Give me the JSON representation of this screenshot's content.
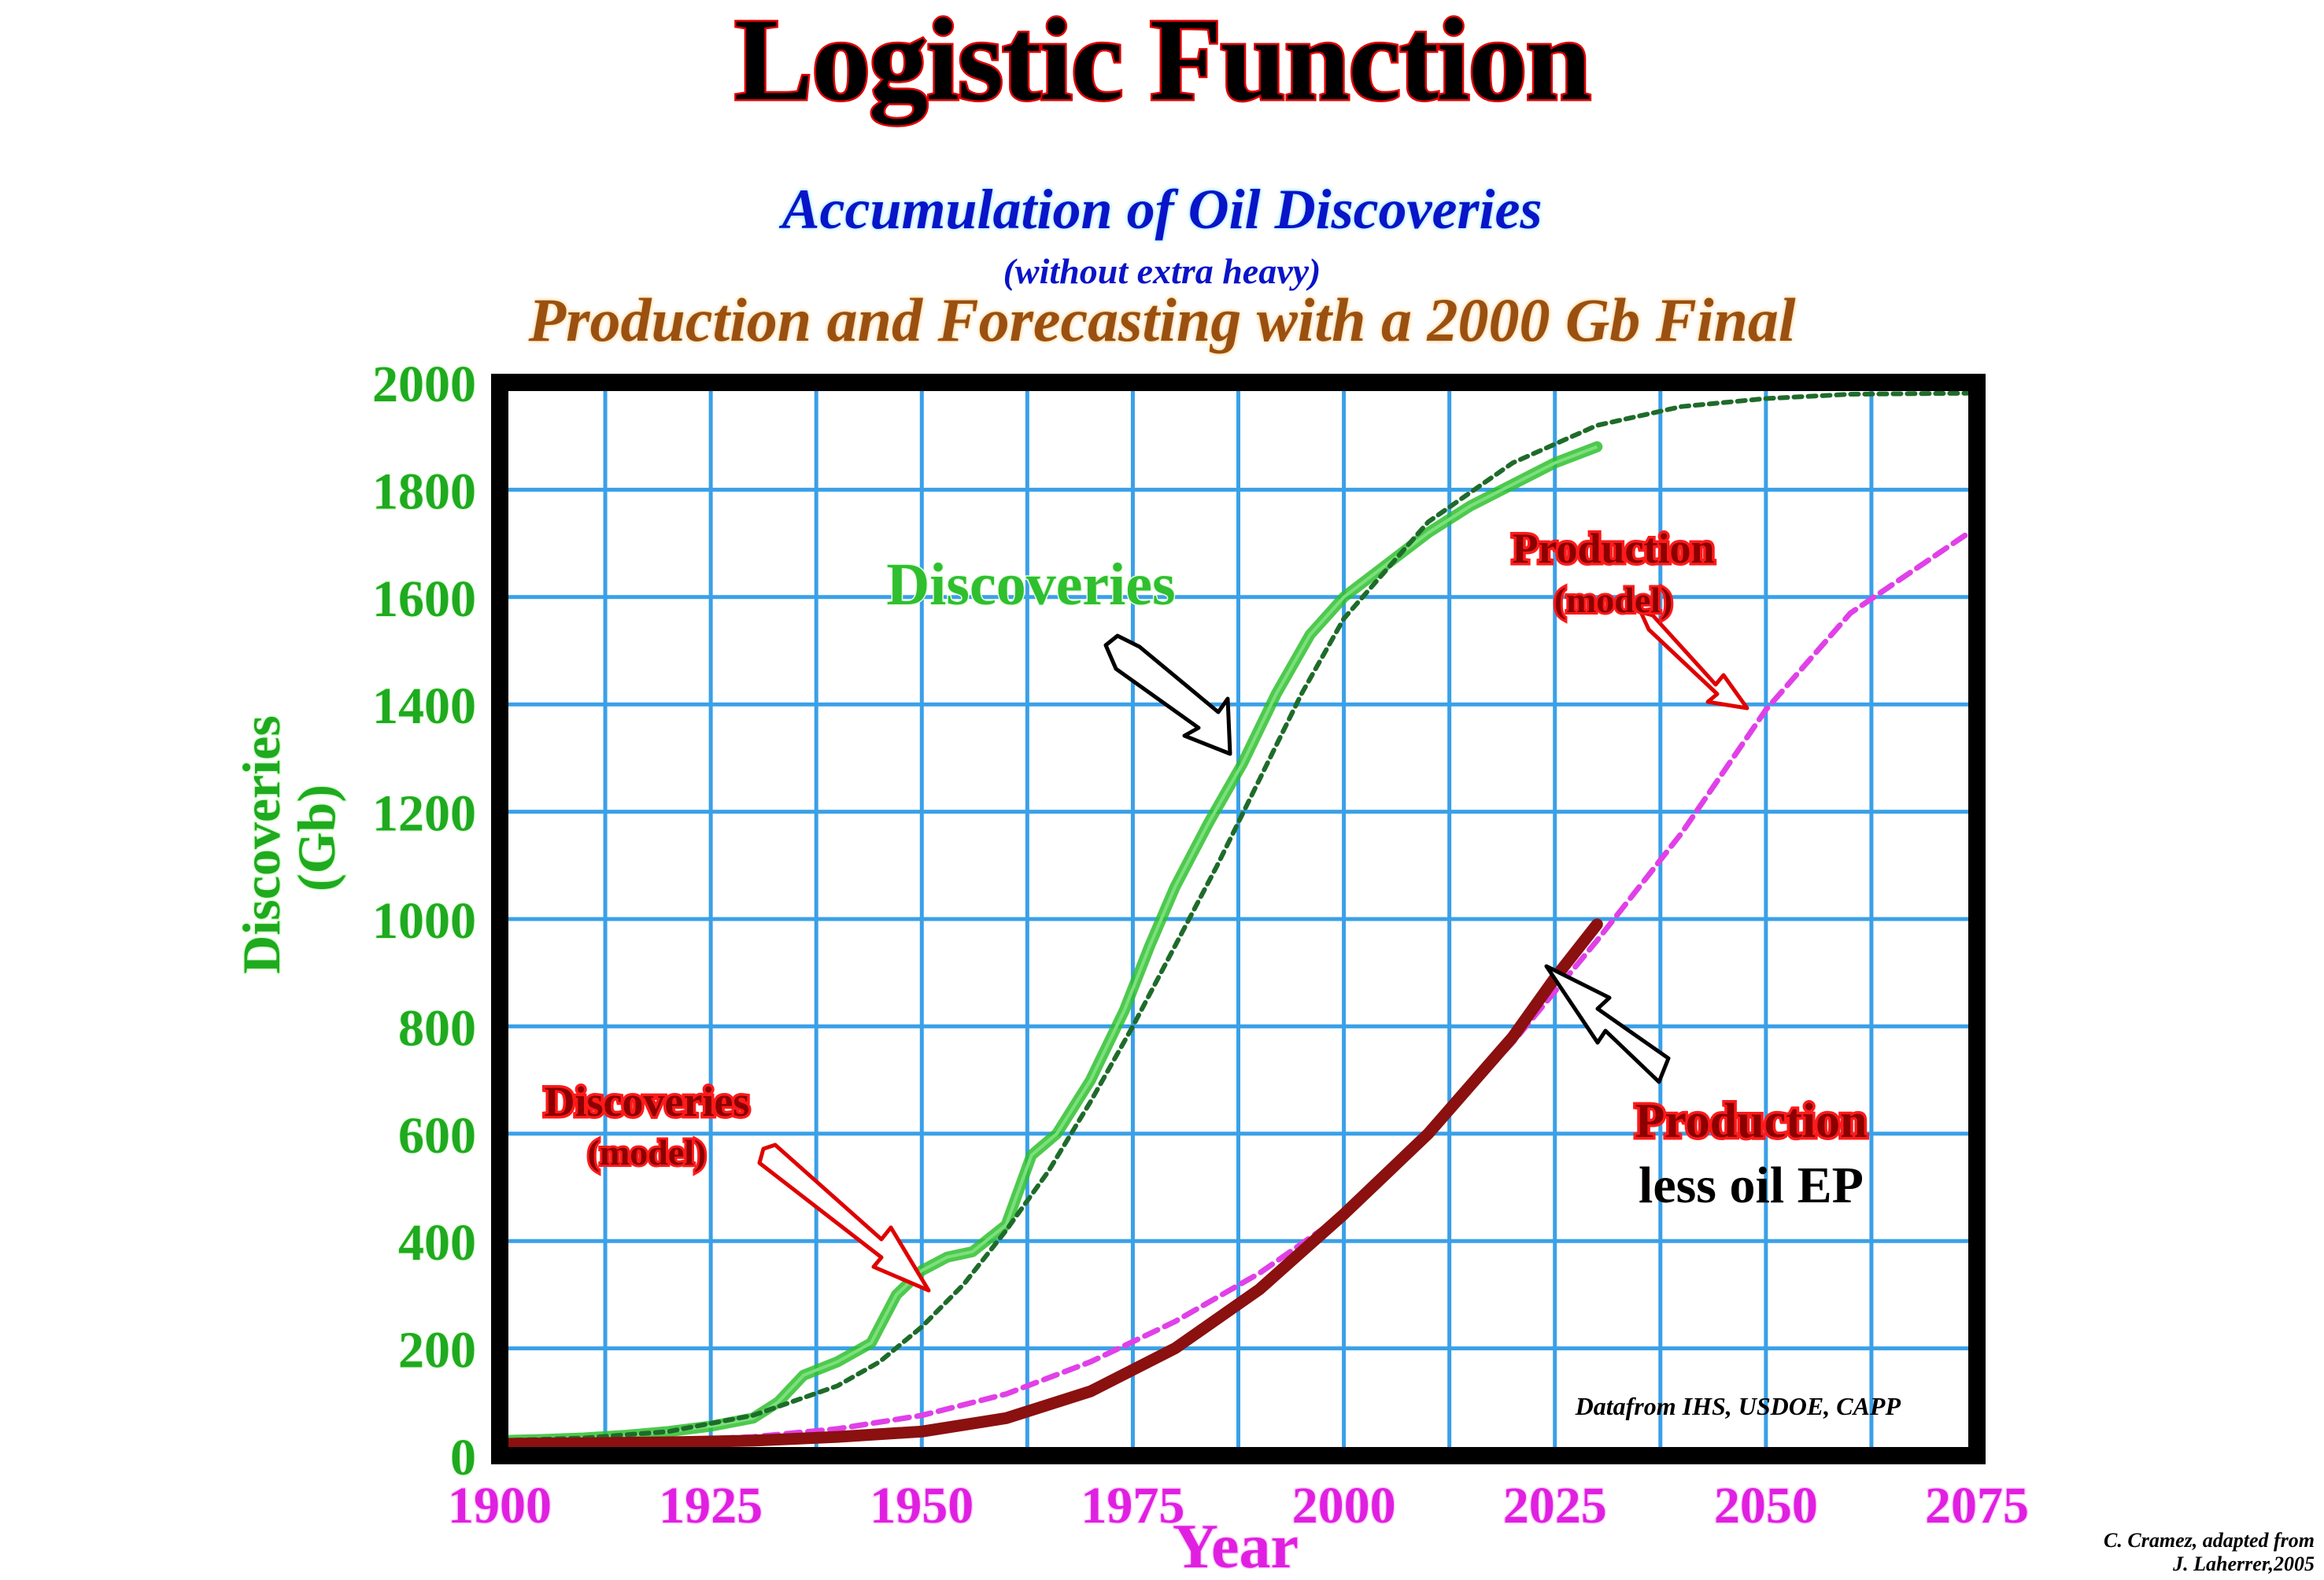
{
  "title": "Logistic Function",
  "subtitle_1": "Accumulation of Oil Discoveries",
  "subtitle_2": "(without extra heavy)",
  "subtitle_3": "Production and Forecasting with a 2000 Gb Final",
  "credit": "C. Cramez, adapted from\nJ. Laherrer,2005",
  "colors": {
    "green": "#2fbf2f",
    "dark_green": "#1e6b2a",
    "magenta": "#e040e8",
    "dark_red": "#8b1010",
    "red": "#e00000",
    "grid_blue": "#3aa0e8",
    "y_label_green": "#1faa1f",
    "x_label_magenta": "#e020e0"
  },
  "chart_data": {
    "type": "line",
    "xlabel": "Year",
    "ylabel": "Discoveries (Gb)",
    "xlim": [
      1900,
      2075
    ],
    "ylim": [
      0,
      2000
    ],
    "x_ticks": [
      1900,
      1925,
      1950,
      1975,
      2000,
      2025,
      2050,
      2075
    ],
    "y_ticks": [
      0,
      200,
      400,
      600,
      800,
      1000,
      1200,
      1400,
      1600,
      1800,
      2000
    ],
    "grid": true,
    "source_note": "Datafrom IHS, USDOE, CAPP",
    "series": [
      {
        "key": "discoveries",
        "x": [
          1900,
          1905,
          1910,
          1915,
          1920,
          1925,
          1930,
          1933,
          1936,
          1940,
          1944,
          1947,
          1950,
          1953,
          1956,
          1960,
          1963,
          1966,
          1970,
          1974,
          1977,
          1980,
          1984,
          1988,
          1992,
          1996,
          2000,
          2005,
          2010,
          2015,
          2020,
          2025,
          2030
        ],
        "y": [
          28,
          30,
          33,
          38,
          45,
          55,
          70,
          100,
          150,
          175,
          210,
          300,
          345,
          370,
          380,
          430,
          560,
          600,
          700,
          830,
          950,
          1060,
          1180,
          1290,
          1420,
          1530,
          1600,
          1660,
          1720,
          1770,
          1810,
          1850,
          1880
        ]
      },
      {
        "key": "discoveries-model",
        "x": [
          1900,
          1910,
          1920,
          1930,
          1940,
          1945,
          1950,
          1955,
          1960,
          1965,
          1970,
          1975,
          1980,
          1985,
          1990,
          1995,
          2000,
          2010,
          2020,
          2030,
          2040,
          2050,
          2060,
          2075
        ],
        "y": [
          28,
          33,
          45,
          75,
          130,
          175,
          240,
          320,
          420,
          530,
          660,
          800,
          950,
          1100,
          1260,
          1420,
          1560,
          1740,
          1850,
          1920,
          1955,
          1970,
          1978,
          1980
        ]
      },
      {
        "key": "production-model",
        "x": [
          1900,
          1910,
          1920,
          1930,
          1940,
          1950,
          1960,
          1970,
          1980,
          1990,
          2000,
          2010,
          2020,
          2030,
          2040,
          2050,
          2060,
          2075
        ],
        "y": [
          22,
          24,
          28,
          35,
          50,
          75,
          115,
          175,
          250,
          340,
          450,
          600,
          770,
          960,
          1160,
          1390,
          1570,
          1730
        ]
      },
      {
        "key": "production",
        "x": [
          1900,
          1910,
          1920,
          1930,
          1940,
          1950,
          1960,
          1970,
          1980,
          1990,
          2000,
          2010,
          2020,
          2025,
          2030
        ],
        "y": [
          22,
          23,
          25,
          28,
          35,
          45,
          70,
          120,
          200,
          310,
          450,
          600,
          780,
          890,
          990
        ]
      }
    ],
    "annotations": [
      {
        "key": "discoveries",
        "text": "Discoveries"
      },
      {
        "key": "production-model",
        "text": "Production",
        "sub": "(model)"
      },
      {
        "key": "discoveries-model",
        "text": "Discoveries",
        "sub": "(model)"
      },
      {
        "key": "production",
        "text": "Production",
        "sub": "less oil EP"
      }
    ]
  }
}
